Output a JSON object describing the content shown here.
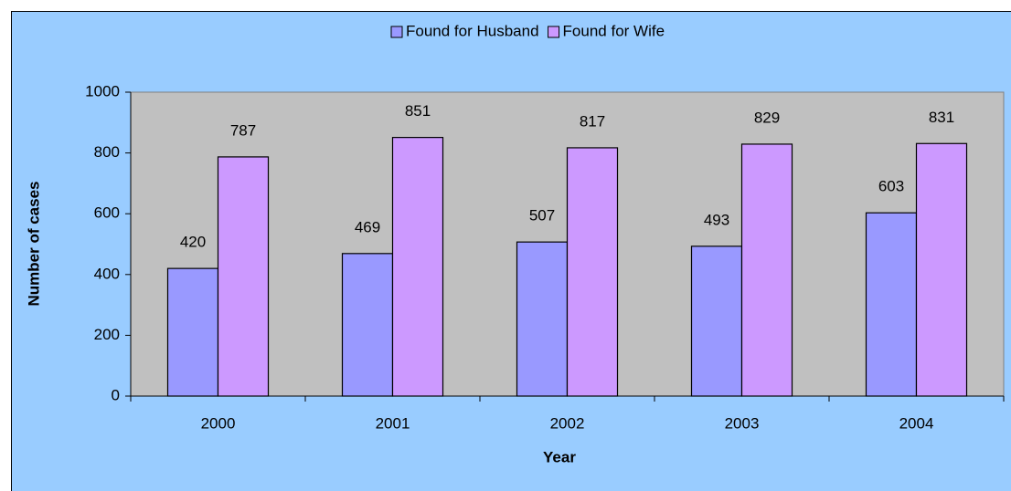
{
  "chart_data": {
    "type": "bar",
    "categories": [
      "2000",
      "2001",
      "2002",
      "2003",
      "2004"
    ],
    "series": [
      {
        "name": "Found for Husband",
        "color": "#9999ff",
        "values": [
          420,
          469,
          507,
          493,
          603
        ]
      },
      {
        "name": "Found for Wife",
        "color": "#cc99ff",
        "values": [
          787,
          851,
          817,
          829,
          831
        ]
      }
    ],
    "ylim": [
      0,
      1000
    ],
    "yticks": [
      0,
      200,
      400,
      600,
      800,
      1000
    ],
    "y_label": "Number of cases",
    "x_label": "Year",
    "legend": "top",
    "plot_background": "#c0c0c0",
    "background": "#99ccff"
  }
}
